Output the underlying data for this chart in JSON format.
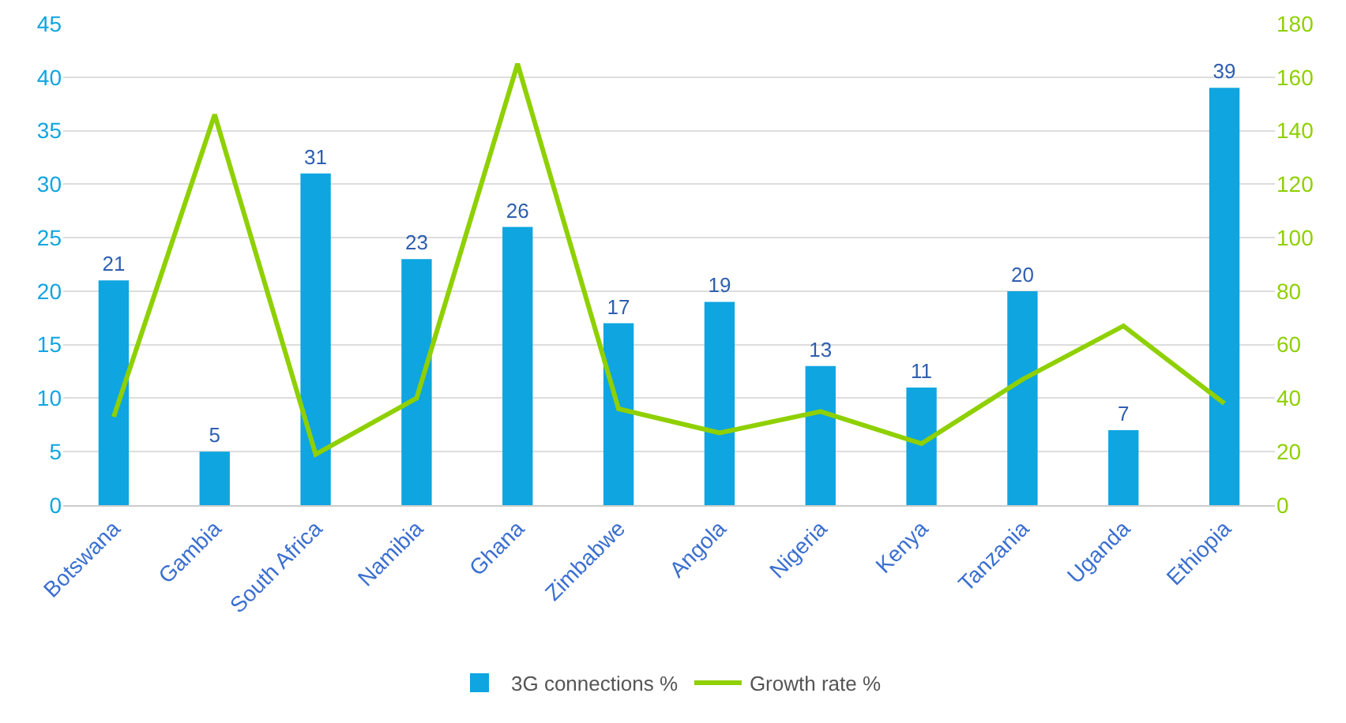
{
  "chart_data": {
    "type": "bar",
    "categories": [
      "Botswana",
      "Gambia",
      "South Africa",
      "Namibia",
      "Ghana",
      "Zimbabwe",
      "Angola",
      "Nigeria",
      "Kenya",
      "Tanzania",
      "Uganda",
      "Ethiopia"
    ],
    "series": [
      {
        "name": "3G connections %",
        "color": "#0ea5e0",
        "values": [
          21,
          5,
          31,
          23,
          26,
          17,
          19,
          13,
          11,
          20,
          7,
          39
        ],
        "value_labels": [
          "21",
          "5",
          "31",
          "23",
          "26",
          "17",
          "19",
          "13",
          "11",
          "20",
          "7",
          "39"
        ]
      },
      {
        "name": "Growth rate %",
        "type": "line",
        "axis": "y2",
        "color": "#8fd000",
        "values": [
          33,
          146,
          19,
          40,
          165,
          36,
          27,
          35,
          23,
          47,
          67,
          38
        ]
      }
    ],
    "ylim": [
      0,
      45
    ],
    "yticks": [
      0,
      5,
      10,
      15,
      20,
      25,
      30,
      35,
      40,
      45
    ],
    "y2lim": [
      0,
      180
    ],
    "y2ticks": [
      0,
      20,
      40,
      60,
      80,
      100,
      120,
      140,
      160,
      180
    ],
    "grid": "y",
    "legend": "bottom",
    "marker": "none",
    "line_style": "solid"
  }
}
